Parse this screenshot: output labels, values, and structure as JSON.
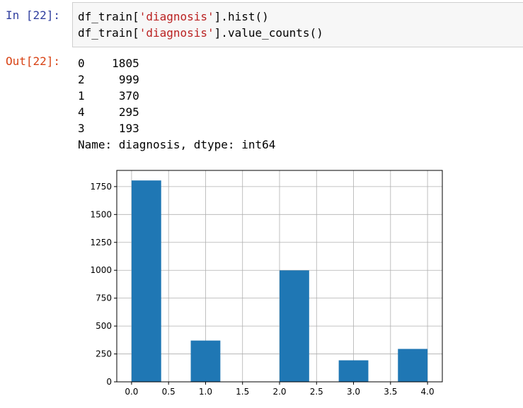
{
  "input_cell": {
    "prompt": "In [22]:",
    "line1": {
      "prefix": "df_train[",
      "string": "'diagnosis'",
      "suffix": "].hist()"
    },
    "line2": {
      "prefix": "df_train[",
      "string": "'diagnosis'",
      "suffix": "].value_counts()"
    }
  },
  "output_cell": {
    "prompt": "Out[22]:",
    "value_counts": [
      {
        "index": "0",
        "count": "1805"
      },
      {
        "index": "2",
        "count": "999"
      },
      {
        "index": "1",
        "count": "370"
      },
      {
        "index": "4",
        "count": "295"
      },
      {
        "index": "3",
        "count": "193"
      }
    ],
    "footer": "Name: diagnosis, dtype: int64"
  },
  "colors": {
    "bar": "#1f77b4",
    "grid": "#b0b0b0",
    "in_prompt": "#303f9f",
    "out_prompt": "#d84315",
    "string": "#ba2121"
  },
  "chart_data": {
    "type": "bar",
    "title": "",
    "xlabel": "",
    "ylabel": "",
    "bins": [
      {
        "x0": 0.0,
        "x1": 0.4,
        "value": 1805
      },
      {
        "x0": 0.4,
        "x1": 0.8,
        "value": 0
      },
      {
        "x0": 0.8,
        "x1": 1.2,
        "value": 370
      },
      {
        "x0": 1.2,
        "x1": 1.6,
        "value": 0
      },
      {
        "x0": 1.6,
        "x1": 2.0,
        "value": 0
      },
      {
        "x0": 2.0,
        "x1": 2.4,
        "value": 999
      },
      {
        "x0": 2.4,
        "x1": 2.8,
        "value": 0
      },
      {
        "x0": 2.8,
        "x1": 3.2,
        "value": 193
      },
      {
        "x0": 3.2,
        "x1": 3.6,
        "value": 0
      },
      {
        "x0": 3.6,
        "x1": 4.0,
        "value": 295
      }
    ],
    "xlim": [
      -0.2,
      4.2
    ],
    "ylim": [
      0,
      1895
    ],
    "xticks": [
      "0.0",
      "0.5",
      "1.0",
      "1.5",
      "2.0",
      "2.5",
      "3.0",
      "3.5",
      "4.0"
    ],
    "yticks": [
      "0",
      "250",
      "500",
      "750",
      "1000",
      "1250",
      "1500",
      "1750"
    ],
    "grid": true
  }
}
